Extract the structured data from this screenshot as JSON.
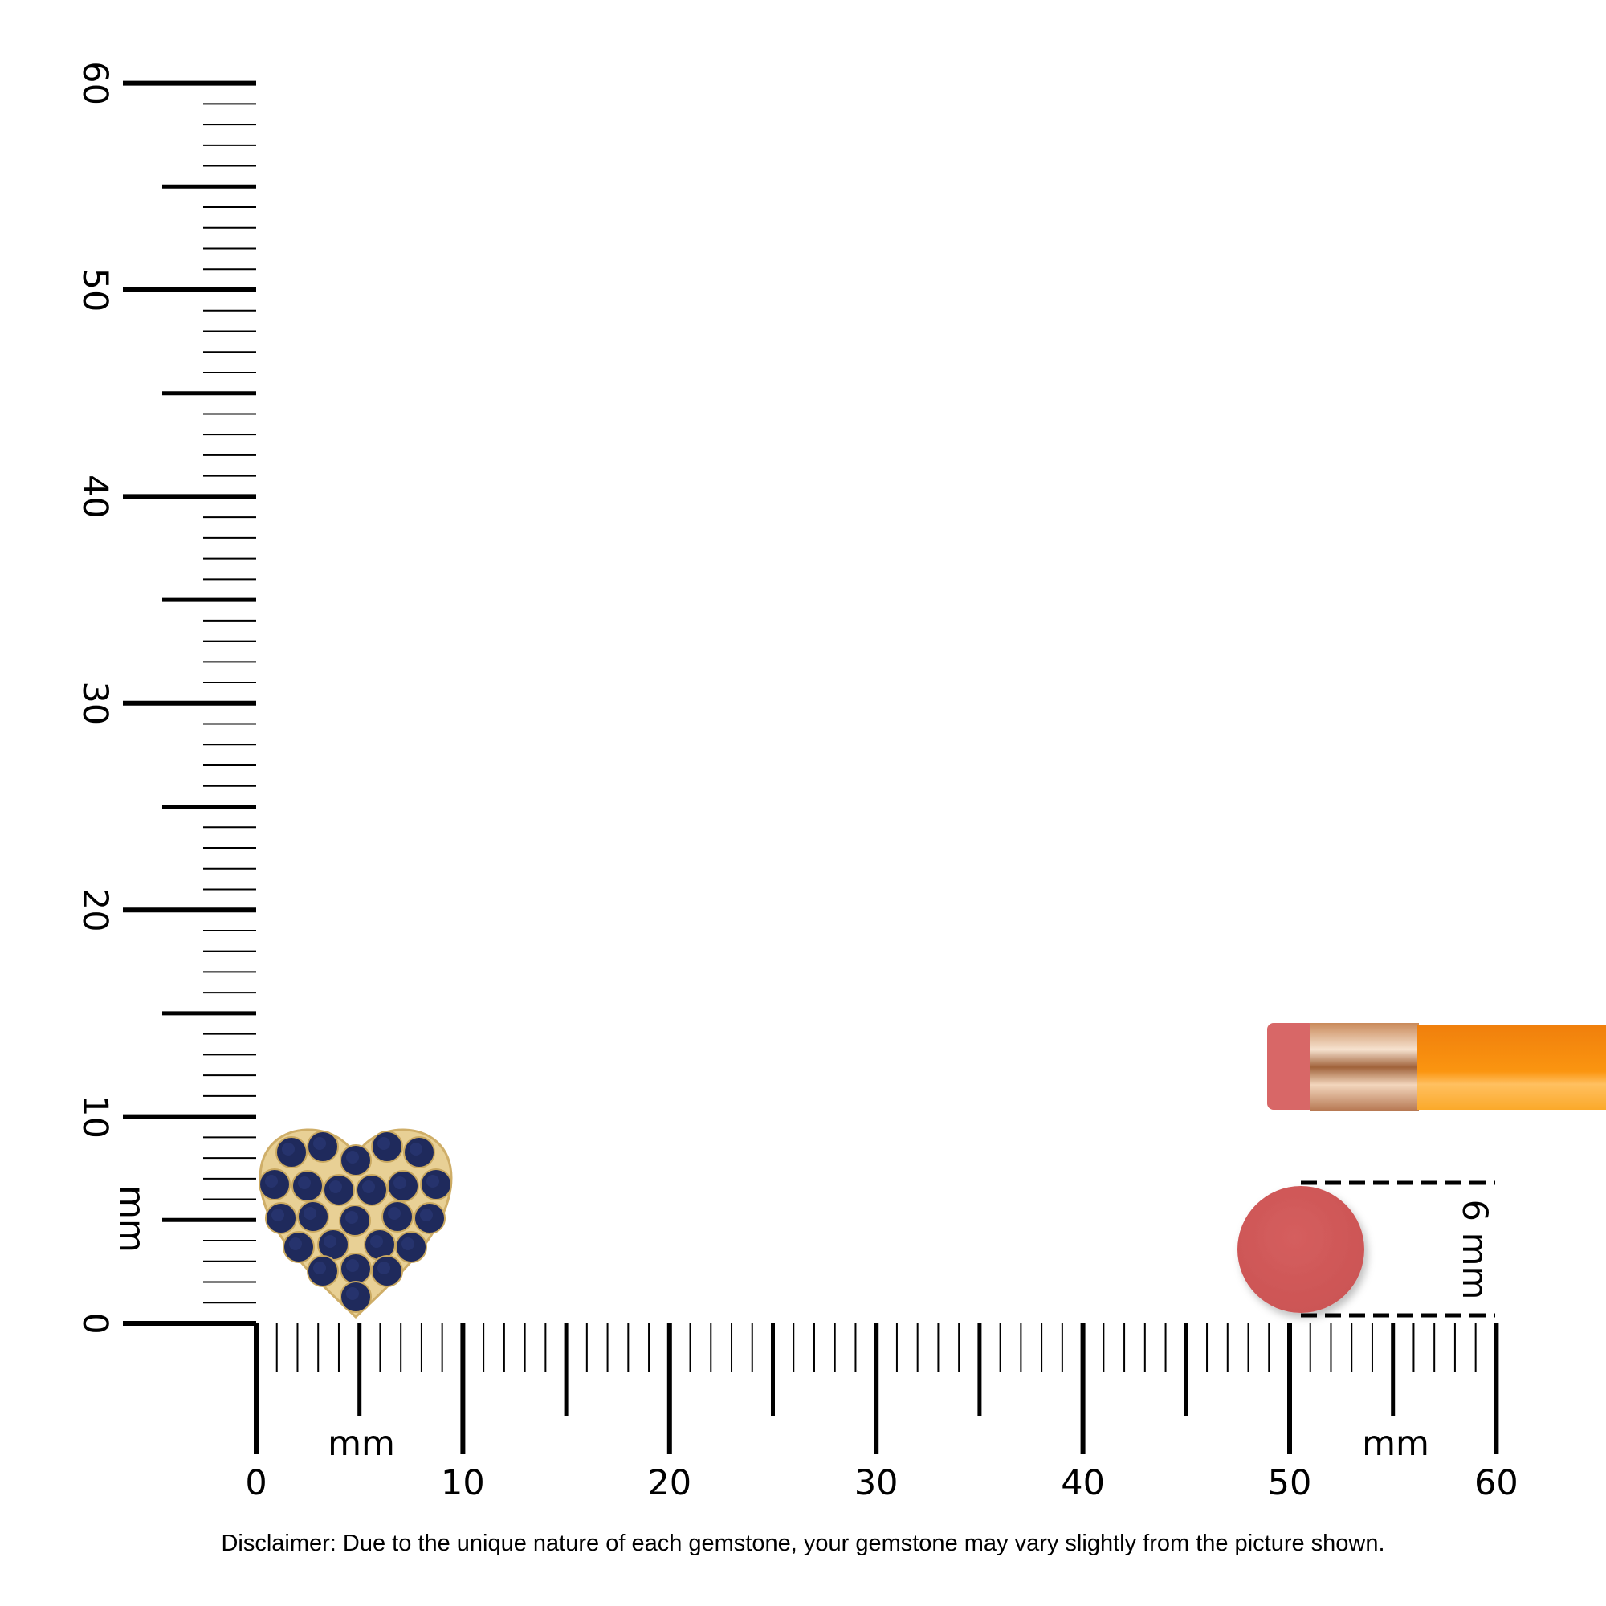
{
  "rulers": {
    "unit": "mm",
    "range": [
      0,
      60
    ],
    "major_labels": [
      "0",
      "10",
      "20",
      "30",
      "40",
      "50",
      "60"
    ],
    "horizontal_unit_labels": [
      "mm",
      "mm"
    ],
    "vertical_unit_label": "mm"
  },
  "product": {
    "description_icon": "heart-pave-sapphire-earring",
    "gem_color": "#1f2a5c",
    "metal_color": "#e6cc8a"
  },
  "reference": {
    "object": "pencil-eraser",
    "dimension_label": "6 mm",
    "eraser_color": "#d35a5a",
    "pencil_color": "#f7930f"
  },
  "disclaimer": "Disclaimer: Due to the unique nature of each gemstone, your gemstone may vary slightly from the picture shown."
}
